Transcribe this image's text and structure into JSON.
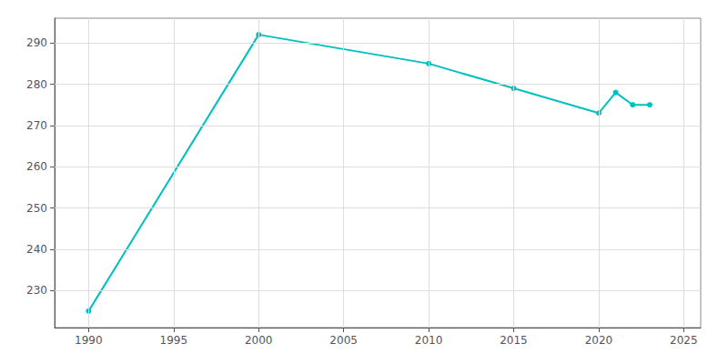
{
  "chart_data": {
    "type": "line",
    "x": [
      1990,
      2000,
      2010,
      2015,
      2020,
      2021,
      2022,
      2023
    ],
    "values": [
      225,
      292,
      285,
      279,
      273,
      278,
      275,
      275
    ],
    "color": "#00C0C0",
    "marker": "circle",
    "xlim": [
      1988,
      2026
    ],
    "ylim": [
      221,
      296
    ],
    "xticks": [
      1990,
      1995,
      2000,
      2005,
      2010,
      2015,
      2020,
      2025
    ],
    "yticks": [
      230,
      240,
      250,
      260,
      270,
      280,
      290
    ],
    "grid": true
  }
}
